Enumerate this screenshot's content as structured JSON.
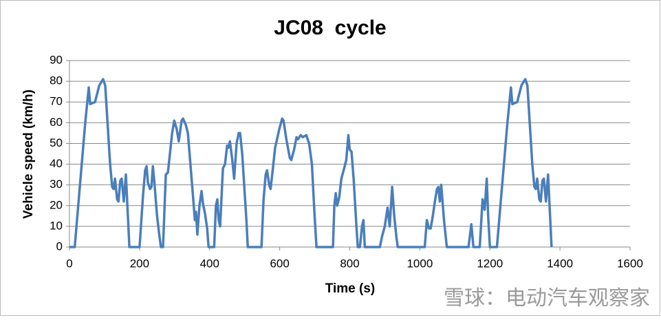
{
  "chart_data": {
    "type": "line",
    "title": "JC08  cycle",
    "x_label": "Time (s)",
    "y_label": "Vehicle speed (km/h)",
    "watermark": "雪球：电动汽车观察家",
    "x": [
      0,
      15,
      25,
      35,
      45,
      55,
      59,
      73,
      85,
      96,
      102,
      116,
      122,
      126,
      130,
      136,
      140,
      145,
      149,
      155,
      161,
      167,
      171,
      200,
      210,
      216,
      220,
      224,
      230,
      234,
      238,
      242,
      250,
      257,
      261,
      267,
      275,
      281,
      293,
      299,
      306,
      312,
      320,
      324,
      332,
      338,
      350,
      358,
      361,
      365,
      371,
      377,
      381,
      387,
      393,
      397,
      413,
      418,
      422,
      426,
      430,
      438,
      444,
      450,
      454,
      458,
      464,
      470,
      477,
      483,
      487,
      493,
      499,
      505,
      509,
      548,
      554,
      560,
      564,
      570,
      574,
      580,
      587,
      599,
      607,
      611,
      619,
      629,
      633,
      641,
      648,
      652,
      660,
      666,
      676,
      684,
      692,
      699,
      705,
      752,
      756,
      760,
      764,
      770,
      776,
      784,
      790,
      796,
      800,
      805,
      811,
      819,
      823,
      829,
      835,
      839,
      843,
      886,
      892,
      900,
      908,
      914,
      921,
      927,
      933,
      937,
      1014,
      1020,
      1026,
      1031,
      1037,
      1043,
      1049,
      1053,
      1057,
      1061,
      1069,
      1077,
      1139,
      1147,
      1153,
      1171,
      1179,
      1185,
      1191,
      1195,
      1200,
      1220,
      1230,
      1240,
      1250,
      1260,
      1264,
      1278,
      1290,
      1301,
      1307,
      1321,
      1327,
      1331,
      1335,
      1341,
      1345,
      1350,
      1354,
      1360,
      1366,
      1372,
      1376
    ],
    "series": [
      {
        "color": "#4a7ebb",
        "values": [
          0,
          0,
          20,
          40,
          60,
          77,
          69,
          70,
          78,
          81,
          78,
          40,
          29,
          28,
          33,
          23,
          22,
          32,
          33,
          22,
          35,
          14,
          0,
          0,
          25,
          37,
          39,
          31,
          28,
          29,
          39,
          32,
          15,
          5,
          0,
          0,
          35,
          36,
          55,
          61,
          57,
          51,
          61,
          62,
          59,
          55,
          30,
          13,
          17,
          6,
          20,
          27,
          21,
          16,
          9,
          0,
          0,
          20,
          23,
          13,
          10,
          38,
          40,
          49,
          48,
          51,
          43,
          33,
          50,
          55,
          55,
          45,
          29,
          13,
          0,
          0,
          23,
          35,
          37,
          30,
          28,
          37,
          48,
          57,
          62,
          61,
          52,
          43,
          42,
          47,
          53,
          52,
          54,
          53,
          54,
          50,
          40,
          17,
          0,
          0,
          20,
          26,
          20,
          24,
          33,
          38,
          42,
          54,
          47,
          46,
          33,
          10,
          0,
          0,
          10,
          13,
          0,
          0,
          5,
          10,
          19,
          10,
          29,
          15,
          5,
          0,
          0,
          13,
          9,
          9,
          15,
          22,
          28,
          29,
          22,
          30,
          13,
          0,
          0,
          11,
          0,
          0,
          23,
          18,
          33,
          15,
          0,
          0,
          20,
          40,
          60,
          77,
          69,
          70,
          78,
          81,
          78,
          40,
          29,
          28,
          33,
          23,
          22,
          32,
          33,
          22,
          35,
          14,
          0
        ]
      }
    ],
    "xlim": [
      0,
      1600
    ],
    "xticks": [
      0,
      200,
      400,
      600,
      800,
      1000,
      1200,
      1400,
      1600
    ],
    "ylim": [
      0,
      90
    ],
    "yticks": [
      0,
      10,
      20,
      30,
      40,
      50,
      60,
      70,
      80,
      90
    ],
    "grid": true
  }
}
